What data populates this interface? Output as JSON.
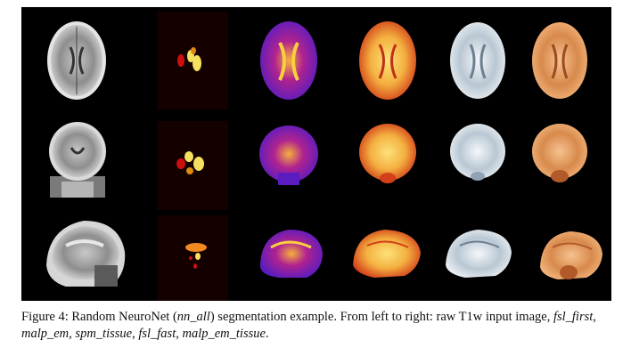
{
  "figure": {
    "columns": [
      "raw T1w input image",
      "fsl_first",
      "malp_em",
      "spm_tissue",
      "fsl_fast",
      "malp_em_tissue"
    ],
    "rows": [
      "axial",
      "coronal",
      "sagittal"
    ],
    "colors": {
      "background": "#000000",
      "t1_gray": "#9a9a9a",
      "t1_light": "#d8d8d8",
      "first_red": "#cc1010",
      "first_yellow": "#f5e060",
      "malp_purple": "#6b1fd0",
      "malp_orange": "#f08a20",
      "spm_yellow": "#f7d050",
      "spm_orange": "#e05a1a",
      "fast_white": "#eef2f5",
      "fast_blue": "#8fa3b4",
      "tissue_peach": "#f2b27a",
      "tissue_brown": "#b35a2a"
    }
  },
  "caption": {
    "label": "Figure 4:",
    "t1": " Random NeuroNet (",
    "nn_all": "nn_all",
    "t2": ") segmentation example. From left to right: raw T1w input image, ",
    "fsl_first": "fsl_first",
    "sep1": ", ",
    "malp_em": "malp_em",
    "sep2": ", ",
    "spm_tissue": "spm_tissue",
    "sep3": ", ",
    "fsl_fast": "fsl_fast",
    "sep4": ", ",
    "malp_em_tissue": "malp_em_tissue",
    "end": "."
  }
}
